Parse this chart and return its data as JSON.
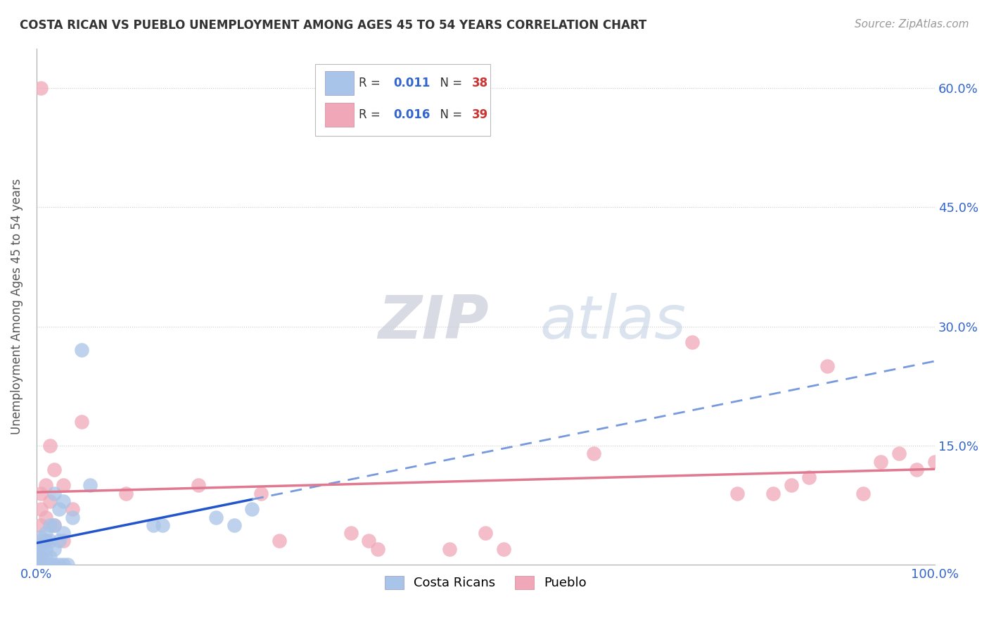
{
  "title": "COSTA RICAN VS PUEBLO UNEMPLOYMENT AMONG AGES 45 TO 54 YEARS CORRELATION CHART",
  "source": "Source: ZipAtlas.com",
  "ylabel": "Unemployment Among Ages 45 to 54 years",
  "xlim": [
    0,
    1.0
  ],
  "ylim": [
    0,
    0.65
  ],
  "xticks": [
    0.0,
    0.1,
    0.2,
    0.3,
    0.4,
    0.5,
    0.6,
    0.7,
    0.8,
    0.9,
    1.0
  ],
  "xticklabels": [
    "0.0%",
    "",
    "",
    "",
    "",
    "",
    "",
    "",
    "",
    "",
    "100.0%"
  ],
  "yticks": [
    0.0,
    0.15,
    0.3,
    0.45,
    0.6
  ],
  "yticklabels": [
    "",
    "15.0%",
    "30.0%",
    "45.0%",
    "60.0%"
  ],
  "grid_color": "#cccccc",
  "background_color": "#ffffff",
  "costa_rican_color": "#a8c4e8",
  "pueblo_color": "#f0a8b8",
  "costa_rican_R": 0.011,
  "costa_rican_N": 38,
  "pueblo_R": 0.016,
  "pueblo_N": 39,
  "legend_R_color": "#3366cc",
  "legend_N_color": "#cc3333",
  "watermark_zip": "ZIP",
  "watermark_atlas": "atlas",
  "costa_rican_x": [
    0.005,
    0.005,
    0.005,
    0.005,
    0.005,
    0.005,
    0.005,
    0.005,
    0.01,
    0.01,
    0.01,
    0.01,
    0.01,
    0.015,
    0.015,
    0.015,
    0.02,
    0.02,
    0.02,
    0.025,
    0.025,
    0.03,
    0.03,
    0.04,
    0.05,
    0.06,
    0.13,
    0.14,
    0.2,
    0.22,
    0.24,
    0.005,
    0.01,
    0.015,
    0.02,
    0.025,
    0.03,
    0.035
  ],
  "costa_rican_y": [
    0.035,
    0.025,
    0.02,
    0.015,
    0.01,
    0.005,
    0.0,
    0.0,
    0.04,
    0.03,
    0.02,
    0.01,
    0.0,
    0.05,
    0.03,
    0.01,
    0.09,
    0.05,
    0.02,
    0.07,
    0.03,
    0.08,
    0.04,
    0.06,
    0.27,
    0.1,
    0.05,
    0.05,
    0.06,
    0.05,
    0.07,
    0.0,
    0.0,
    0.0,
    0.0,
    0.0,
    0.0,
    0.0
  ],
  "pueblo_x": [
    0.005,
    0.005,
    0.005,
    0.005,
    0.005,
    0.01,
    0.01,
    0.01,
    0.015,
    0.015,
    0.02,
    0.02,
    0.03,
    0.03,
    0.04,
    0.05,
    0.1,
    0.18,
    0.25,
    0.27,
    0.35,
    0.37,
    0.38,
    0.46,
    0.5,
    0.52,
    0.62,
    0.73,
    0.78,
    0.82,
    0.84,
    0.86,
    0.88,
    0.92,
    0.94,
    0.96,
    0.98,
    1.0,
    0.005
  ],
  "pueblo_y": [
    0.09,
    0.07,
    0.05,
    0.03,
    0.01,
    0.1,
    0.06,
    0.03,
    0.15,
    0.08,
    0.12,
    0.05,
    0.1,
    0.03,
    0.07,
    0.18,
    0.09,
    0.1,
    0.09,
    0.03,
    0.04,
    0.03,
    0.02,
    0.02,
    0.04,
    0.02,
    0.14,
    0.28,
    0.09,
    0.09,
    0.1,
    0.11,
    0.25,
    0.09,
    0.13,
    0.14,
    0.12,
    0.13,
    0.6
  ]
}
